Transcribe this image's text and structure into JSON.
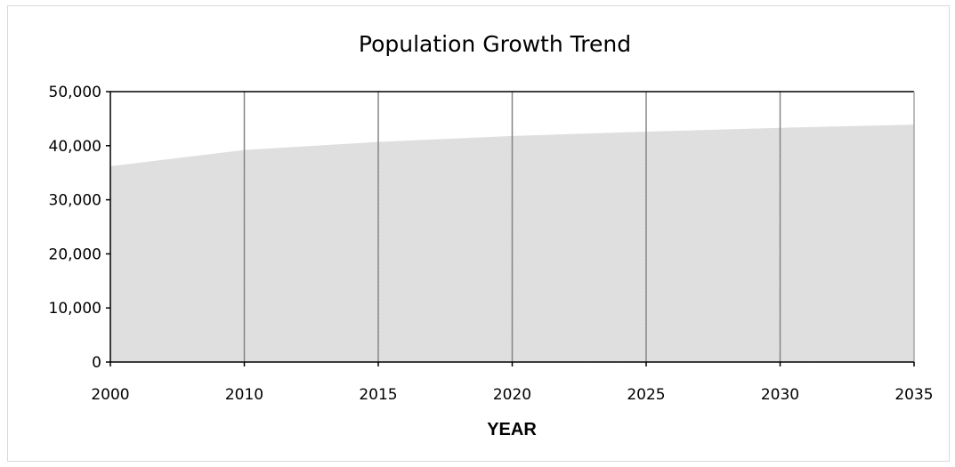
{
  "chart_data": {
    "type": "area",
    "title": "Population Growth Trend",
    "xlabel": "YEAR",
    "ylabel": "",
    "x": [
      2000,
      2010,
      2015,
      2020,
      2025,
      2030,
      2035
    ],
    "x_tick_labels": [
      "2000",
      "2010",
      "2015",
      "2020",
      "2025",
      "2030",
      "2035"
    ],
    "y_tick_labels": [
      "0",
      "10,000",
      "20,000",
      "30,000",
      "40,000",
      "50,000"
    ],
    "ylim": [
      0,
      50000
    ],
    "series": [
      {
        "values": [
          36200,
          39200,
          40700,
          41800,
          42600,
          43300,
          43900
        ]
      }
    ],
    "grid": "vertical",
    "legend": "none",
    "colors": {
      "fill": "#e1e1e1",
      "grid": "#868686",
      "axis": "#000000"
    }
  }
}
